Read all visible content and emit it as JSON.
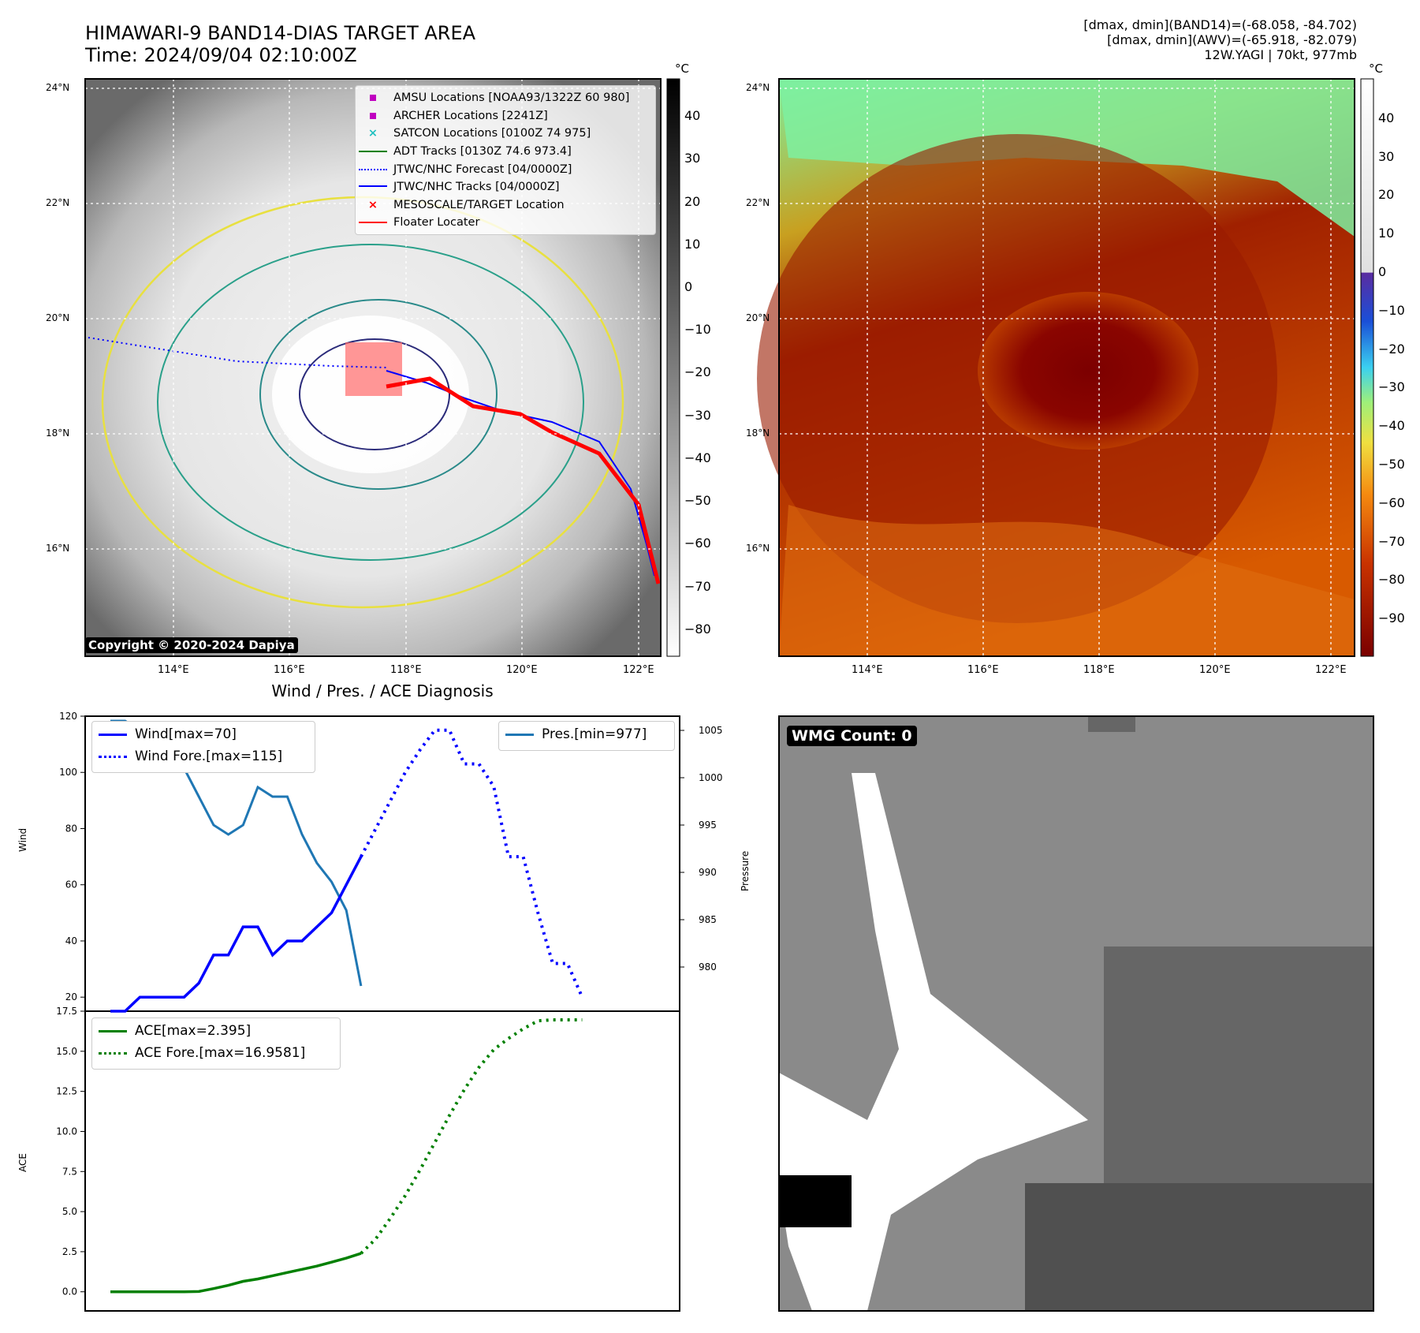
{
  "header": {
    "title_line1": "HIMAWARI-9 BAND14-DIAS TARGET AREA",
    "title_line2": "Time: 2024/09/04 02:10:00Z",
    "info_line1": "[dmax, dmin](BAND14)=(-68.058, -84.702)",
    "info_line2": "[dmax, dmin](AWV)=(-65.918, -82.079)",
    "info_line3": "12W.YAGI | 70kt, 977mb"
  },
  "map": {
    "lat_ticks": [
      "24°N",
      "22°N",
      "20°N",
      "18°N",
      "16°N"
    ],
    "lon_ticks": [
      "114°E",
      "116°E",
      "118°E",
      "120°E",
      "122°E"
    ],
    "legend": [
      {
        "label": "AMSU Locations [NOAA93/1322Z 60 980]",
        "color": "#c000c0",
        "marker": "square"
      },
      {
        "label": "ARCHER Locations [2241Z]",
        "color": "#c000c0",
        "marker": "square"
      },
      {
        "label": "SATCON Locations [0100Z 74 975]",
        "color": "#20c0c0",
        "marker": "x"
      },
      {
        "label": "ADT Tracks [0130Z 74.6 973.4]",
        "color": "#008000",
        "marker": "line"
      },
      {
        "label": "JTWC/NHC Forecast [04/0000Z]",
        "color": "#0000ff",
        "marker": "dotted"
      },
      {
        "label": "JTWC/NHC Tracks [04/0000Z]",
        "color": "#0000ff",
        "marker": "line-dot"
      },
      {
        "label": "MESOSCALE/TARGET Location",
        "color": "#ff0000",
        "marker": "x"
      },
      {
        "label": "Floater Locater",
        "color": "#ff0000",
        "marker": "line"
      }
    ],
    "copyright": "Copyright © 2020-2024 Dapiya"
  },
  "colorbar_left": {
    "unit": "°C",
    "ticks": [
      "40",
      "30",
      "20",
      "10",
      "0",
      "−10",
      "−20",
      "−30",
      "−40",
      "−50",
      "−60",
      "−70",
      "−80"
    ]
  },
  "colorbar_right": {
    "unit": "°C",
    "ticks": [
      "40",
      "30",
      "20",
      "10",
      "0",
      "−10",
      "−20",
      "−30",
      "−40",
      "−50",
      "−60",
      "−70",
      "−80",
      "−90"
    ]
  },
  "chart_data": [
    {
      "type": "line",
      "title": "Wind / Pres. / ACE Diagnosis",
      "ylabel": "Wind",
      "ylabel_right": "Pressure",
      "ylim": [
        15,
        120
      ],
      "ylim_right": [
        977,
        1006.5
      ],
      "yticks": [
        20,
        40,
        60,
        80,
        100,
        120
      ],
      "yticks_right": [
        980,
        985,
        990,
        995,
        1000,
        1005
      ],
      "series": [
        {
          "name": "Wind[max=70]",
          "axis": "left",
          "style": "solid",
          "color": "#0000ff",
          "values": [
            15,
            15,
            20,
            20,
            20,
            20,
            25,
            35,
            35,
            45,
            45,
            35,
            40,
            40,
            45,
            50,
            60,
            70
          ]
        },
        {
          "name": "Wind Fore.[max=115]",
          "axis": "left",
          "style": "dotted",
          "color": "#0000ff",
          "values": [
            70,
            80,
            90,
            100,
            108,
            115,
            115,
            103,
            103,
            95,
            70,
            70,
            50,
            32,
            32,
            20
          ]
        },
        {
          "name": "Pres.[min=977]",
          "axis": "right",
          "style": "solid",
          "color": "#1f77b4",
          "values": [
            1006,
            1006,
            1005,
            1004,
            1001,
            1001,
            998,
            995,
            994,
            995,
            999,
            998,
            998,
            994,
            991,
            989,
            986,
            978
          ]
        }
      ]
    },
    {
      "type": "line",
      "ylabel": "ACE",
      "ylim": [
        -0.8,
        17.5
      ],
      "yticks": [
        0.0,
        2.5,
        5.0,
        7.5,
        10.0,
        12.5,
        15.0,
        17.5
      ],
      "series": [
        {
          "name": "ACE[max=2.395]",
          "style": "solid",
          "color": "#008000",
          "values": [
            0,
            0,
            0,
            0,
            0,
            0,
            0.02,
            0.2,
            0.4,
            0.65,
            0.8,
            1.0,
            1.2,
            1.4,
            1.6,
            1.85,
            2.1,
            2.395
          ]
        },
        {
          "name": "ACE Fore.[max=16.9581]",
          "style": "dotted",
          "color": "#008000",
          "values": [
            2.395,
            3.3,
            4.6,
            6.0,
            7.6,
            9.3,
            11.0,
            12.6,
            14.0,
            15.1,
            15.8,
            16.4,
            16.9,
            16.9581,
            16.9581,
            16.9581
          ]
        }
      ]
    }
  ],
  "wmg": {
    "label": "WMG Count: 0"
  }
}
